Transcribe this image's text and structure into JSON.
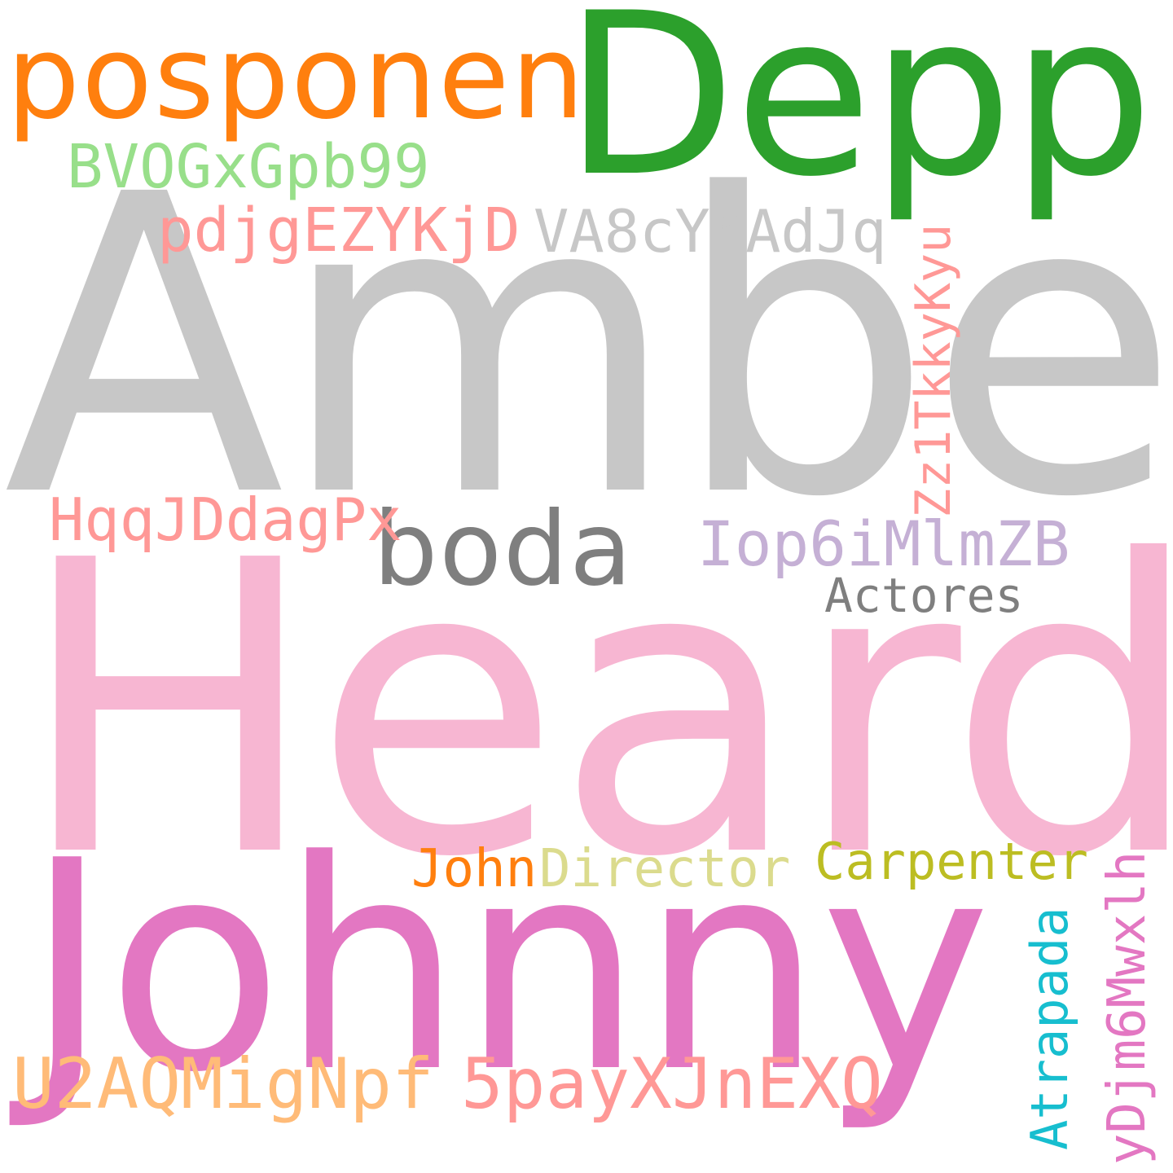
{
  "cloud": {
    "words": {
      "amber": {
        "text": "Amber",
        "color": "#c7c7c7"
      },
      "heard": {
        "text": "Heard",
        "color": "#f7b6d2"
      },
      "depp": {
        "text": "Depp",
        "color": "#2ca02c"
      },
      "johnny": {
        "text": "Johnny",
        "color": "#e377c2"
      },
      "posponen": {
        "text": "posponen",
        "color": "#ff7f0e"
      },
      "boda": {
        "text": "boda",
        "color": "#7f7f7f"
      },
      "bvog": {
        "text": "BVOGxGpb99",
        "color": "#98df8a"
      },
      "pdjg": {
        "text": "pdjgEZYKjD",
        "color": "#ff9896"
      },
      "va8c": {
        "text": "VA8cYMAdJq",
        "color": "#c7c7c7"
      },
      "zz1t": {
        "text": "Zz1TkkyKyu",
        "color": "#ff9896"
      },
      "hqqj": {
        "text": "HqqJDdagPx",
        "color": "#ff9896"
      },
      "iop6": {
        "text": "Iop6iMlmZB",
        "color": "#c5b0d5"
      },
      "actores": {
        "text": "Actores",
        "color": "#7f7f7f"
      },
      "john": {
        "text": "John",
        "color": "#ff7f0e"
      },
      "director": {
        "text": "Director",
        "color": "#dbdb8d"
      },
      "carpenter": {
        "text": "Carpenter",
        "color": "#bcbd22"
      },
      "u2aq": {
        "text": "U2AQMigNpf",
        "color": "#ffbb78"
      },
      "5pay": {
        "text": "5payXJnEXQ",
        "color": "#ff9896"
      },
      "atrapada": {
        "text": "Atrapada",
        "color": "#17becf"
      },
      "ydjm": {
        "text": "yDjm6Mwxlh",
        "color": "#e377c2"
      }
    }
  }
}
